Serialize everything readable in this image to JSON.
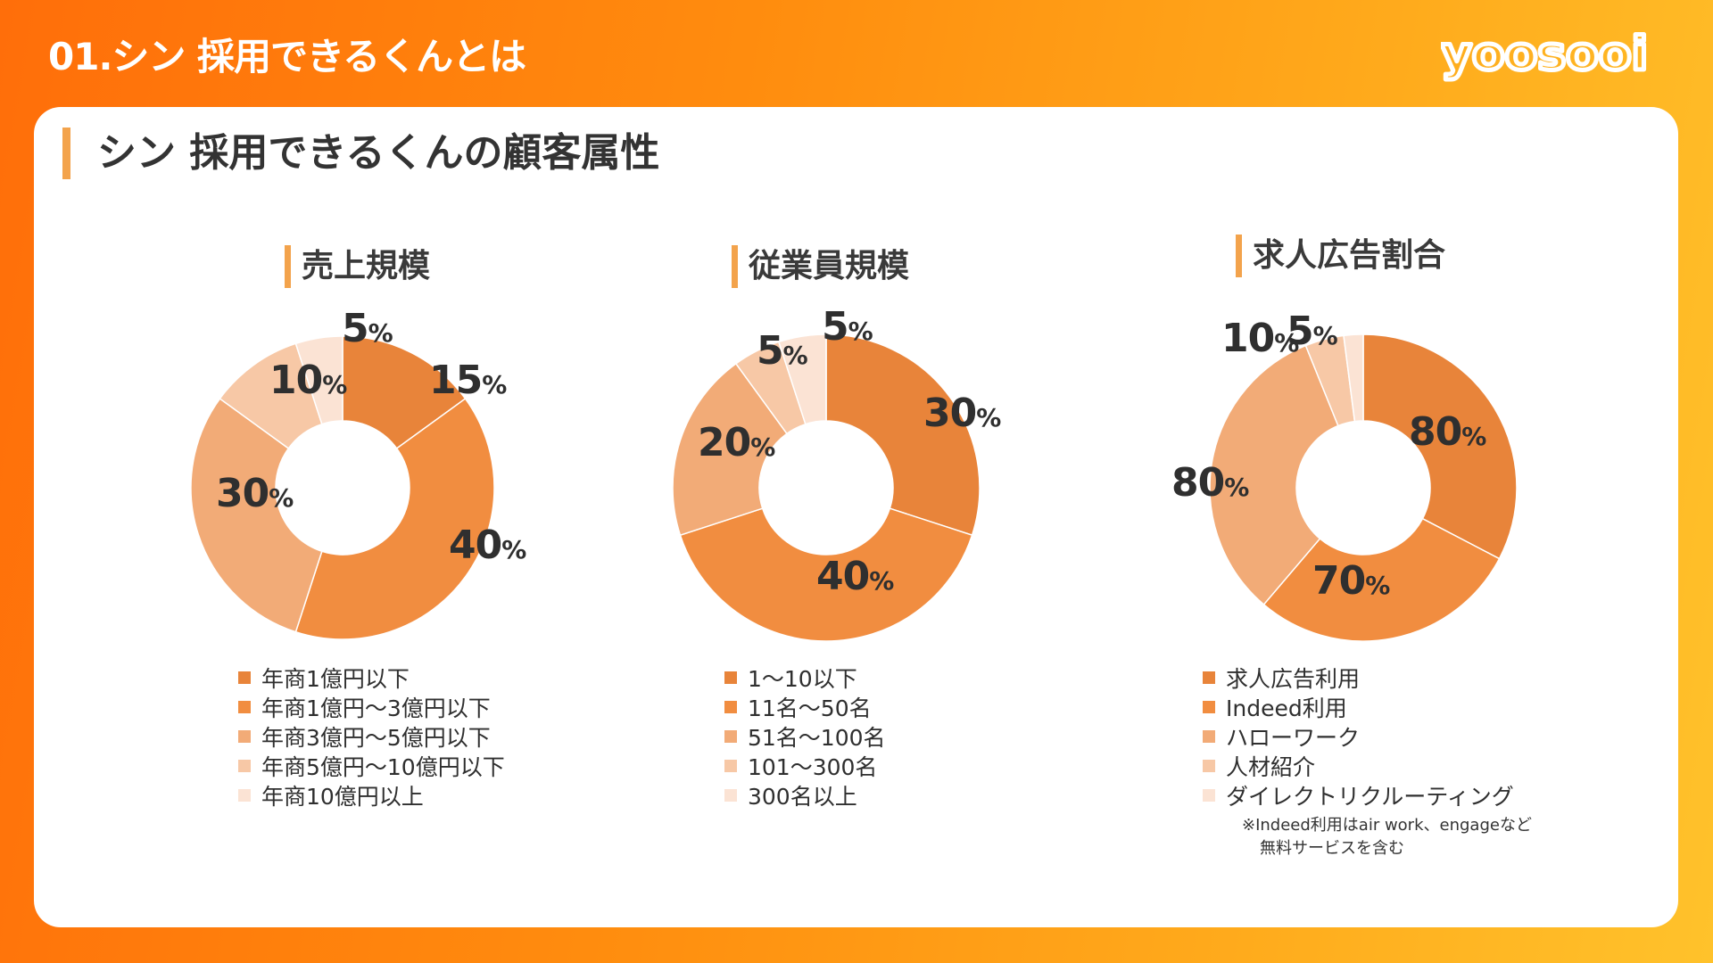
{
  "header": {
    "title": "01.シン 採用できるくんとは",
    "logo": "yoosooi"
  },
  "section_title": "シン 採用できるくんの顧客属性",
  "colors": [
    "#e8843a",
    "#f18d40",
    "#f2ab77",
    "#f7c8a6",
    "#fbe3d4"
  ],
  "chart_data": [
    {
      "type": "pie",
      "title": "売上規模",
      "categories": [
        "年商1億円以下",
        "年商1億円〜3億円以下",
        "年商3億円〜5億円以下",
        "年商5億円〜10億円以下",
        "年商10億円以上"
      ],
      "values": [
        15,
        40,
        30,
        10,
        5
      ],
      "labels": [
        {
          "num": "15",
          "sign": "%"
        },
        {
          "num": "40",
          "sign": "%"
        },
        {
          "num": "30",
          "sign": "%"
        },
        {
          "num": "10",
          "sign": "%"
        },
        {
          "num": "5",
          "sign": "%"
        }
      ]
    },
    {
      "type": "pie",
      "title": "従業員規模",
      "categories": [
        "1〜10以下",
        "11名〜50名",
        "51名〜100名",
        "101〜300名",
        "300名以上"
      ],
      "values": [
        30,
        40,
        20,
        5,
        5
      ],
      "labels": [
        {
          "num": "30",
          "sign": "%"
        },
        {
          "num": "40",
          "sign": "%"
        },
        {
          "num": "20",
          "sign": "%"
        },
        {
          "num": "5",
          "sign": "%"
        },
        {
          "num": "5",
          "sign": "%"
        }
      ]
    },
    {
      "type": "pie",
      "title": "求人広告割合",
      "categories": [
        "求人広告利用",
        "Indeed利用",
        "ハローワーク",
        "人材紹介",
        "ダイレクトリクルーティング"
      ],
      "values": [
        80,
        70,
        80,
        10,
        5
      ],
      "labels": [
        {
          "num": "80",
          "sign": "%"
        },
        {
          "num": "70",
          "sign": "%"
        },
        {
          "num": "80",
          "sign": "%"
        },
        {
          "num": "10",
          "sign": "%"
        },
        {
          "num": "5",
          "sign": "%"
        }
      ],
      "note": [
        "※Indeed利用はair work、engageなど",
        "無料サービスを含む"
      ]
    }
  ]
}
